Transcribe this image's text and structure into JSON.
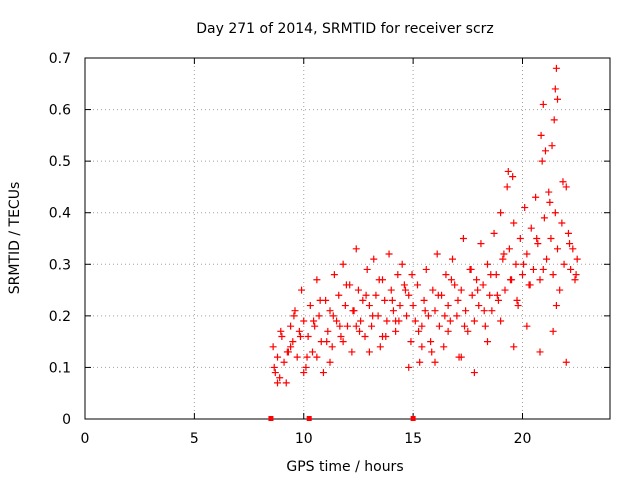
{
  "chart_data": {
    "type": "scatter",
    "title": "Day 271 of 2014, SRMTID for receiver scrz",
    "xlabel": "GPS time / hours",
    "ylabel": "SRMTID / TECUs",
    "xlim": [
      0,
      24
    ],
    "ylim": [
      0,
      0.7
    ],
    "x_ticks": [
      0,
      5,
      10,
      15,
      20
    ],
    "x_tick_labels": [
      "0",
      "5",
      "10",
      "15",
      "20"
    ],
    "y_ticks": [
      0,
      0.1,
      0.2,
      0.3,
      0.4,
      0.5,
      0.6,
      0.7
    ],
    "y_tick_labels": [
      "0",
      "0.1",
      "0.2",
      "0.3",
      "0.4",
      "0.5",
      "0.6",
      "0.7"
    ],
    "grid": true,
    "marker": "+",
    "color": "#ff0000",
    "series": [
      {
        "name": "SRMTID",
        "x": [
          8.6,
          8.7,
          8.8,
          8.9,
          9.0,
          9.1,
          9.2,
          9.3,
          9.4,
          9.5,
          9.6,
          9.7,
          9.8,
          9.9,
          10.0,
          10.1,
          10.2,
          10.3,
          10.4,
          10.5,
          10.6,
          10.7,
          10.8,
          10.9,
          11.0,
          11.1,
          11.2,
          11.3,
          11.4,
          11.5,
          11.6,
          11.7,
          11.8,
          11.9,
          12.0,
          12.1,
          12.2,
          12.3,
          12.4,
          12.5,
          12.6,
          12.7,
          12.8,
          12.9,
          13.0,
          13.1,
          13.2,
          13.3,
          13.4,
          13.5,
          13.6,
          13.7,
          13.8,
          13.9,
          14.0,
          14.1,
          14.2,
          14.3,
          14.4,
          14.5,
          14.6,
          14.7,
          14.8,
          14.9,
          15.0,
          15.1,
          15.2,
          15.3,
          15.4,
          15.5,
          15.6,
          15.7,
          15.8,
          15.9,
          16.0,
          16.1,
          16.2,
          16.3,
          16.4,
          16.5,
          16.6,
          16.7,
          16.8,
          16.9,
          17.0,
          17.1,
          17.2,
          17.3,
          17.4,
          17.5,
          17.6,
          17.7,
          17.8,
          17.9,
          18.0,
          18.1,
          18.2,
          18.3,
          18.4,
          18.5,
          18.6,
          18.7,
          18.8,
          18.9,
          19.0,
          19.1,
          19.2,
          19.3,
          19.4,
          19.5,
          19.6,
          19.7,
          19.8,
          19.9,
          20.0,
          20.1,
          20.2,
          20.3,
          20.4,
          20.5,
          20.6,
          20.7,
          20.8,
          20.9,
          21.0,
          21.1,
          21.2,
          21.3,
          21.4,
          21.5,
          21.6,
          21.7,
          21.8,
          21.9,
          22.0,
          22.1,
          22.2,
          22.3,
          22.4,
          22.5,
          8.65,
          8.95,
          9.25,
          9.55,
          9.85,
          10.15,
          10.45,
          10.75,
          11.05,
          11.35,
          11.65,
          11.95,
          12.25,
          12.55,
          12.85,
          13.15,
          13.45,
          13.75,
          14.05,
          14.35,
          14.65,
          14.95,
          15.25,
          15.55,
          15.85,
          16.15,
          16.45,
          16.75,
          17.05,
          17.35,
          17.65,
          17.95,
          18.25,
          18.55,
          18.85,
          19.15,
          19.45,
          19.75,
          20.05,
          20.35,
          20.65,
          20.95,
          21.25,
          21.55,
          21.85,
          22.15,
          22.45,
          8.8,
          9.4,
          10.0,
          10.6,
          11.2,
          11.8,
          12.4,
          13.0,
          13.6,
          14.2,
          14.8,
          15.4,
          16.0,
          16.6,
          17.2,
          17.8,
          18.4,
          19.0,
          19.6,
          20.2,
          20.8,
          21.4,
          22.0,
          21.45,
          21.5,
          21.55,
          20.85,
          20.95,
          21.05,
          19.35,
          19.55,
          21.35,
          21.6
        ],
        "y": [
          0.14,
          0.09,
          0.12,
          0.08,
          0.16,
          0.11,
          0.07,
          0.13,
          0.18,
          0.15,
          0.21,
          0.12,
          0.17,
          0.25,
          0.19,
          0.1,
          0.16,
          0.22,
          0.13,
          0.18,
          0.27,
          0.2,
          0.15,
          0.09,
          0.23,
          0.17,
          0.21,
          0.14,
          0.28,
          0.19,
          0.24,
          0.16,
          0.3,
          0.22,
          0.18,
          0.26,
          0.13,
          0.21,
          0.33,
          0.25,
          0.19,
          0.23,
          0.16,
          0.29,
          0.22,
          0.18,
          0.31,
          0.24,
          0.2,
          0.14,
          0.27,
          0.23,
          0.19,
          0.32,
          0.25,
          0.21,
          0.17,
          0.28,
          0.22,
          0.3,
          0.26,
          0.2,
          0.24,
          0.15,
          0.22,
          0.19,
          0.26,
          0.11,
          0.18,
          0.23,
          0.29,
          0.2,
          0.15,
          0.25,
          0.21,
          0.32,
          0.18,
          0.24,
          0.14,
          0.28,
          0.22,
          0.19,
          0.31,
          0.26,
          0.2,
          0.12,
          0.25,
          0.35,
          0.21,
          0.17,
          0.29,
          0.24,
          0.19,
          0.27,
          0.22,
          0.34,
          0.26,
          0.18,
          0.3,
          0.24,
          0.21,
          0.36,
          0.28,
          0.23,
          0.4,
          0.31,
          0.25,
          0.45,
          0.33,
          0.27,
          0.38,
          0.3,
          0.22,
          0.35,
          0.28,
          0.41,
          0.32,
          0.26,
          0.37,
          0.29,
          0.43,
          0.34,
          0.27,
          0.5,
          0.39,
          0.31,
          0.44,
          0.35,
          0.28,
          0.4,
          0.33,
          0.25,
          0.38,
          0.3,
          0.45,
          0.36,
          0.29,
          0.33,
          0.27,
          0.31,
          0.1,
          0.17,
          0.13,
          0.2,
          0.16,
          0.12,
          0.19,
          0.23,
          0.15,
          0.2,
          0.18,
          0.26,
          0.21,
          0.17,
          0.24,
          0.2,
          0.27,
          0.16,
          0.23,
          0.19,
          0.25,
          0.28,
          0.17,
          0.21,
          0.13,
          0.24,
          0.2,
          0.27,
          0.23,
          0.18,
          0.29,
          0.25,
          0.21,
          0.28,
          0.24,
          0.32,
          0.27,
          0.23,
          0.3,
          0.26,
          0.35,
          0.29,
          0.42,
          0.22,
          0.46,
          0.34,
          0.28,
          0.07,
          0.14,
          0.09,
          0.12,
          0.11,
          0.15,
          0.18,
          0.13,
          0.16,
          0.19,
          0.1,
          0.14,
          0.11,
          0.17,
          0.12,
          0.09,
          0.15,
          0.19,
          0.14,
          0.18,
          0.13,
          0.17,
          0.11,
          0.58,
          0.64,
          0.68,
          0.55,
          0.61,
          0.52,
          0.48,
          0.47,
          0.53,
          0.62
        ]
      }
    ],
    "markers_on_axis_x": [
      8.5,
      10.25,
      15.0
    ]
  }
}
